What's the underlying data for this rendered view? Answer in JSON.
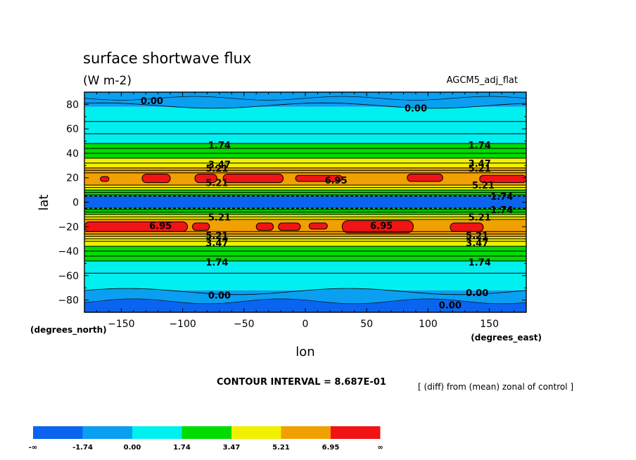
{
  "chart_data": {
    "type": "heatmap",
    "subtype": "filled-contour map",
    "title": "surface shortwave flux",
    "units": "(W m-2)",
    "model_label": "AGCM5_adj_flat",
    "xlabel": "lon",
    "ylabel": "lat",
    "xunits": "(degrees_east)",
    "yunits": "(degrees_north)",
    "xlim": [
      -180,
      180
    ],
    "ylim": [
      -90,
      90
    ],
    "xticks": [
      -150,
      -100,
      -50,
      0,
      50,
      100,
      150
    ],
    "yticks": [
      80,
      60,
      40,
      20,
      0,
      -20,
      -40,
      -60,
      -80
    ],
    "grid": false,
    "contour_interval_text": "CONTOUR INTERVAL = 8.687E-01",
    "note": "[ (diff) from (mean) zonal of control ]",
    "contour_labels": [
      {
        "text": "0.00",
        "lon": -125,
        "lat": 83
      },
      {
        "text": "0.00",
        "lon": 90,
        "lat": 77
      },
      {
        "text": "1.74",
        "lon": -70,
        "lat": 47
      },
      {
        "text": "1.74",
        "lon": 142,
        "lat": 47
      },
      {
        "text": "3.47",
        "lon": -70,
        "lat": 31
      },
      {
        "text": "5.21",
        "lon": -72,
        "lat": 28
      },
      {
        "text": "3.47",
        "lon": 142,
        "lat": 32
      },
      {
        "text": "5.21",
        "lon": 142,
        "lat": 28
      },
      {
        "text": "6.95",
        "lon": 25,
        "lat": 18
      },
      {
        "text": "5.21",
        "lon": -72,
        "lat": 16
      },
      {
        "text": "5.21",
        "lon": 145,
        "lat": 14
      },
      {
        "text": "1.74",
        "lon": 160,
        "lat": 5
      },
      {
        "text": "1.74",
        "lon": 160,
        "lat": -6
      },
      {
        "text": "5.21",
        "lon": -70,
        "lat": -12
      },
      {
        "text": "5.21",
        "lon": 142,
        "lat": -12
      },
      {
        "text": "6.95",
        "lon": -118,
        "lat": -19
      },
      {
        "text": "6.95",
        "lon": 62,
        "lat": -19
      },
      {
        "text": "5.21",
        "lon": -72,
        "lat": -27
      },
      {
        "text": "3.47",
        "lon": -72,
        "lat": -33
      },
      {
        "text": "5.21",
        "lon": 140,
        "lat": -27
      },
      {
        "text": "3.47",
        "lon": 140,
        "lat": -33
      },
      {
        "text": "1.74",
        "lon": -72,
        "lat": -49
      },
      {
        "text": "1.74",
        "lon": 142,
        "lat": -49
      },
      {
        "text": "0.00",
        "lon": -70,
        "lat": -76
      },
      {
        "text": "0.00",
        "lon": 140,
        "lat": -74
      },
      {
        "text": "0.00",
        "lon": 118,
        "lat": -84
      }
    ],
    "colorbar": {
      "labels": [
        "-∞",
        "-1.74",
        "0.00",
        "1.74",
        "3.47",
        "5.21",
        "6.95",
        "∞"
      ],
      "colors": [
        "#0a64f0",
        "#0a9ff0",
        "#00f0f0",
        "#00dc00",
        "#f0f000",
        "#f0a000",
        "#f01414"
      ]
    },
    "level_colors": {
      "lt_m1": "#0a64f0",
      "m1_0": "#0a9ff0",
      "0_1": "#00f0f0",
      "1_2": "#00dc00",
      "2_3": "#f0f000",
      "3_4": "#f0a000",
      "gt_4": "#f01414"
    },
    "zonal_bands": [
      {
        "lat": [
          78,
          90
        ],
        "level": "m1_0"
      },
      {
        "lat": [
          66,
          78
        ],
        "level": "0_1"
      },
      {
        "lat": [
          48,
          66
        ],
        "level": "0_1"
      },
      {
        "lat": [
          36,
          48
        ],
        "level": "1_2"
      },
      {
        "lat": [
          28,
          36
        ],
        "level": "2_3"
      },
      {
        "lat": [
          14,
          28
        ],
        "level": "3_4"
      },
      {
        "lat": [
          10,
          14
        ],
        "level": "2_3"
      },
      {
        "lat": [
          5,
          10
        ],
        "level": "1_2"
      },
      {
        "lat": [
          -5,
          5
        ],
        "level": "lt_m1"
      },
      {
        "lat": [
          -10,
          -5
        ],
        "level": "1_2"
      },
      {
        "lat": [
          -14,
          -10
        ],
        "level": "2_3"
      },
      {
        "lat": [
          -28,
          -14
        ],
        "level": "3_4"
      },
      {
        "lat": [
          -36,
          -28
        ],
        "level": "2_3"
      },
      {
        "lat": [
          -48,
          -36
        ],
        "level": "1_2"
      },
      {
        "lat": [
          -72,
          -48
        ],
        "level": "0_1"
      },
      {
        "lat": [
          -90,
          -72
        ],
        "level": "m1_0"
      }
    ],
    "hot_spots": [
      {
        "lon": [
          -167,
          -160
        ],
        "lat": [
          17,
          21
        ]
      },
      {
        "lon": [
          -133,
          -110
        ],
        "lat": [
          16,
          23
        ]
      },
      {
        "lon": [
          -90,
          -72
        ],
        "lat": [
          16,
          23
        ]
      },
      {
        "lon": [
          -67,
          -18
        ],
        "lat": [
          16,
          23
        ]
      },
      {
        "lon": [
          -8,
          30
        ],
        "lat": [
          17,
          22
        ]
      },
      {
        "lon": [
          83,
          112
        ],
        "lat": [
          17,
          23
        ]
      },
      {
        "lon": [
          142,
          180
        ],
        "lat": [
          16,
          22
        ]
      },
      {
        "lon": [
          -180,
          -96
        ],
        "lat": [
          -24,
          -16
        ]
      },
      {
        "lon": [
          -92,
          -78
        ],
        "lat": [
          -23,
          -17
        ]
      },
      {
        "lon": [
          -40,
          -26
        ],
        "lat": [
          -23,
          -17
        ]
      },
      {
        "lon": [
          -22,
          -4
        ],
        "lat": [
          -23,
          -17
        ]
      },
      {
        "lon": [
          3,
          18
        ],
        "lat": [
          -22,
          -17
        ]
      },
      {
        "lon": [
          30,
          88
        ],
        "lat": [
          -25,
          -15
        ]
      },
      {
        "lon": [
          118,
          145
        ],
        "lat": [
          -24,
          -17
        ]
      }
    ]
  }
}
